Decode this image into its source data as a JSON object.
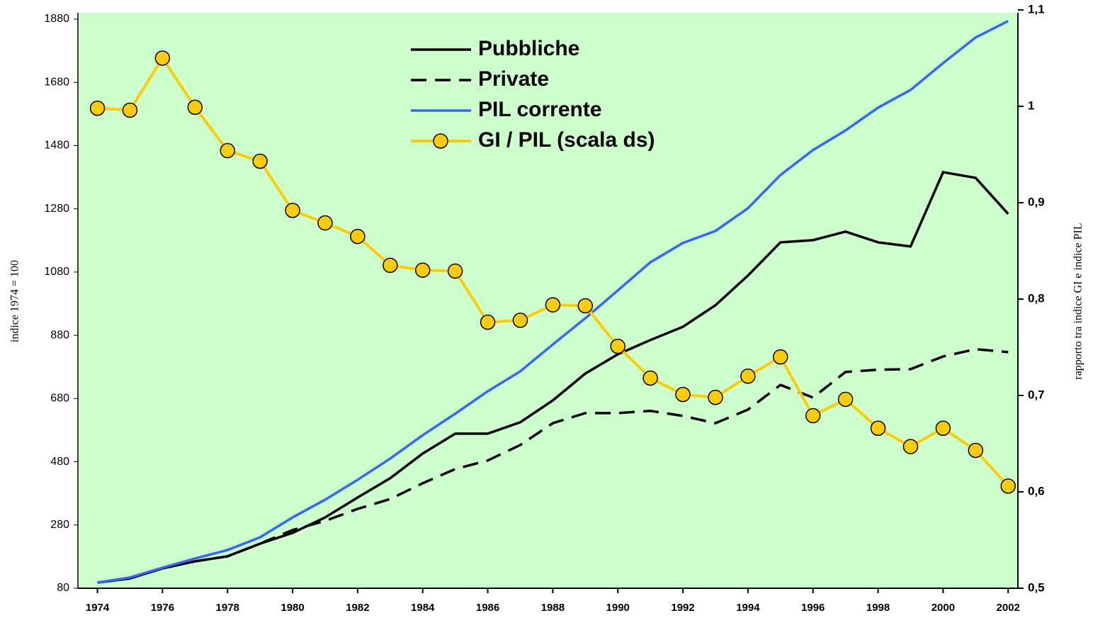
{
  "chart_data": {
    "type": "line",
    "y_label": "indice 1974 = 100",
    "y2_label": "rapporto tra indice GI e indice PIL",
    "x": [
      1974,
      1975,
      1976,
      1977,
      1978,
      1979,
      1980,
      1981,
      1982,
      1983,
      1984,
      1985,
      1986,
      1987,
      1988,
      1989,
      1990,
      1991,
      1992,
      1993,
      1994,
      1995,
      1996,
      1997,
      1998,
      1999,
      2000,
      2001,
      2002
    ],
    "xlim": [
      1973.4,
      2002.3
    ],
    "xticks": [
      1974,
      1976,
      1978,
      1980,
      1982,
      1984,
      1986,
      1988,
      1990,
      1992,
      1994,
      1996,
      1998,
      2000,
      2002
    ],
    "ylim": [
      80,
      1880
    ],
    "yticks": [
      80,
      280,
      480,
      680,
      880,
      1080,
      1280,
      1480,
      1680,
      1880
    ],
    "y2lim": [
      0.5,
      1.1
    ],
    "y2ticks": [
      {
        "value": 0.5,
        "label": "0,5"
      },
      {
        "value": 0.6,
        "label": "0,6"
      },
      {
        "value": 0.7,
        "label": "0,7"
      },
      {
        "value": 0.8,
        "label": "0,8"
      },
      {
        "value": 0.9,
        "label": "0,9"
      },
      1,
      {
        "value": 1.1,
        "label": "1,1"
      }
    ],
    "background": "#ccffcc",
    "series": [
      {
        "name": "Pubbliche",
        "color": "#000000",
        "values": [
          98,
          111,
          143,
          165,
          181,
          221,
          255,
          304,
          367,
          428,
          506,
          569,
          569,
          605,
          674,
          759,
          820,
          865,
          907,
          975,
          1069,
          1174,
          1181,
          1208,
          1174,
          1161,
          1396,
          1378,
          1264
        ]
      },
      {
        "name": "Private",
        "color": "#000000",
        "dash": true,
        "values": [
          98,
          111,
          143,
          165,
          181,
          221,
          264,
          293,
          331,
          362,
          412,
          457,
          484,
          533,
          602,
          634,
          634,
          641,
          625,
          602,
          645,
          723,
          683,
          764,
          771,
          773,
          813,
          836,
          827
        ]
      },
      {
        "name": "PIL corrente",
        "color": "#3366ff",
        "values": [
          98,
          114,
          145,
          174,
          201,
          241,
          304,
          360,
          423,
          490,
          564,
          632,
          703,
          766,
          851,
          934,
          1022,
          1111,
          1172,
          1210,
          1282,
          1387,
          1466,
          1528,
          1600,
          1656,
          1741,
          1822,
          1874
        ]
      },
      {
        "name": "GI / PIL (scala ds)",
        "color": "#ffcc00",
        "axis": "y2",
        "marker": "circle",
        "values": [
          0.998,
          0.996,
          1.05,
          0.999,
          0.954,
          0.943,
          0.892,
          0.879,
          0.865,
          0.835,
          0.83,
          0.829,
          0.776,
          0.778,
          0.794,
          0.793,
          0.751,
          0.718,
          0.701,
          0.698,
          0.72,
          0.74,
          0.679,
          0.696,
          0.666,
          0.647,
          0.666,
          0.643,
          0.606
        ]
      }
    ]
  }
}
